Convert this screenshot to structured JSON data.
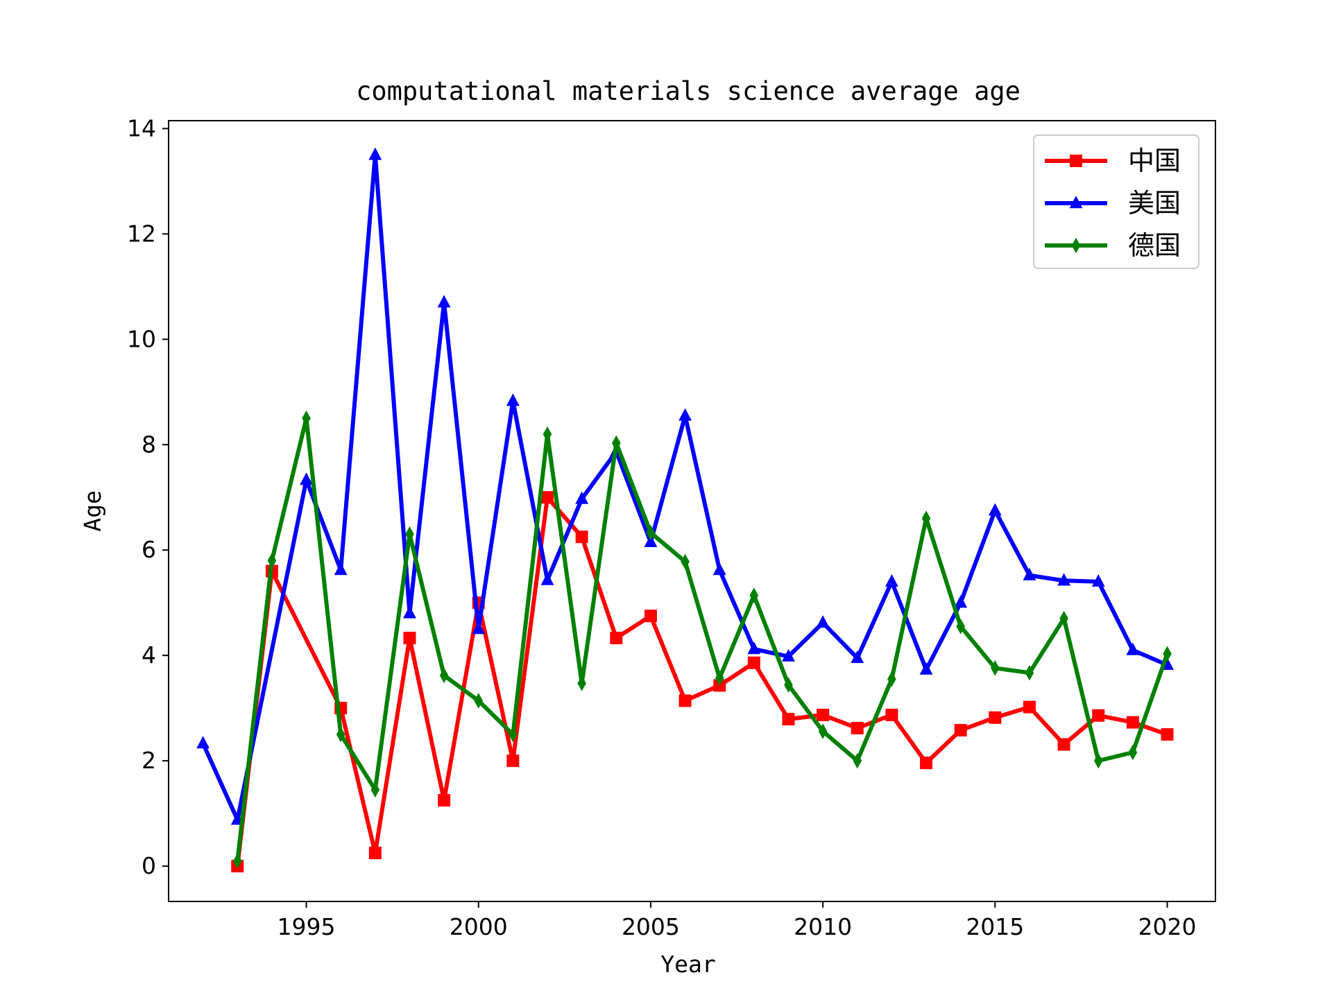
{
  "chart_data": {
    "type": "line",
    "title": "computational materials science average age",
    "xlabel": "Year",
    "ylabel": "Age",
    "xlim": [
      1991,
      2021.4
    ],
    "ylim": [
      -0.67,
      14.15
    ],
    "xticks": [
      1995,
      2000,
      2005,
      2010,
      2015,
      2020
    ],
    "yticks": [
      0,
      2,
      4,
      6,
      8,
      10,
      12,
      14
    ],
    "grid": false,
    "legend_position": "top-right",
    "series": [
      {
        "name": "中国",
        "color": "#ff0000",
        "marker": "square",
        "x": [
          1993,
          1994,
          1996,
          1997,
          1998,
          1999,
          2000,
          2001,
          2002,
          2003,
          2004,
          2005,
          2006,
          2007,
          2008,
          2009,
          2010,
          2011,
          2012,
          2013,
          2014,
          2015,
          2016,
          2017,
          2018,
          2019,
          2020
        ],
        "y": [
          0.0,
          5.6,
          3.0,
          0.25,
          4.33,
          1.25,
          5.0,
          2.0,
          7.0,
          6.25,
          4.33,
          4.75,
          3.14,
          3.43,
          3.86,
          2.79,
          2.87,
          2.62,
          2.87,
          1.96,
          2.58,
          2.82,
          3.02,
          2.31,
          2.86,
          2.73,
          2.5
        ]
      },
      {
        "name": "美国",
        "color": "#0000ff",
        "marker": "triangle",
        "x": [
          1992,
          1993,
          1995,
          1996,
          1997,
          1998,
          1999,
          2000,
          2001,
          2002,
          2003,
          2004,
          2005,
          2006,
          2007,
          2008,
          2009,
          2010,
          2011,
          2012,
          2013,
          2014,
          2015,
          2016,
          2017,
          2018,
          2019,
          2020
        ],
        "y": [
          2.33,
          0.88,
          7.33,
          5.62,
          13.5,
          4.8,
          10.7,
          4.5,
          8.83,
          5.43,
          6.97,
          7.87,
          6.15,
          8.55,
          5.62,
          4.12,
          3.98,
          4.62,
          3.95,
          5.4,
          3.73,
          5.0,
          6.75,
          5.52,
          5.42,
          5.4,
          4.1,
          3.82
        ]
      },
      {
        "name": "德国",
        "color": "#008000",
        "marker": "diamond",
        "x": [
          1993,
          1994,
          1995,
          1996,
          1997,
          1998,
          1999,
          2000,
          2001,
          2002,
          2003,
          2004,
          2005,
          2006,
          2007,
          2008,
          2009,
          2010,
          2011,
          2012,
          2013,
          2014,
          2015,
          2016,
          2017,
          2018,
          2019,
          2020
        ],
        "y": [
          0.1,
          5.8,
          8.5,
          2.5,
          1.45,
          6.3,
          3.62,
          3.14,
          2.5,
          8.2,
          3.47,
          8.03,
          6.33,
          5.78,
          3.57,
          5.14,
          3.44,
          2.56,
          2.0,
          3.55,
          6.6,
          4.55,
          3.76,
          3.67,
          4.7,
          2.0,
          2.16,
          4.03
        ]
      }
    ]
  }
}
